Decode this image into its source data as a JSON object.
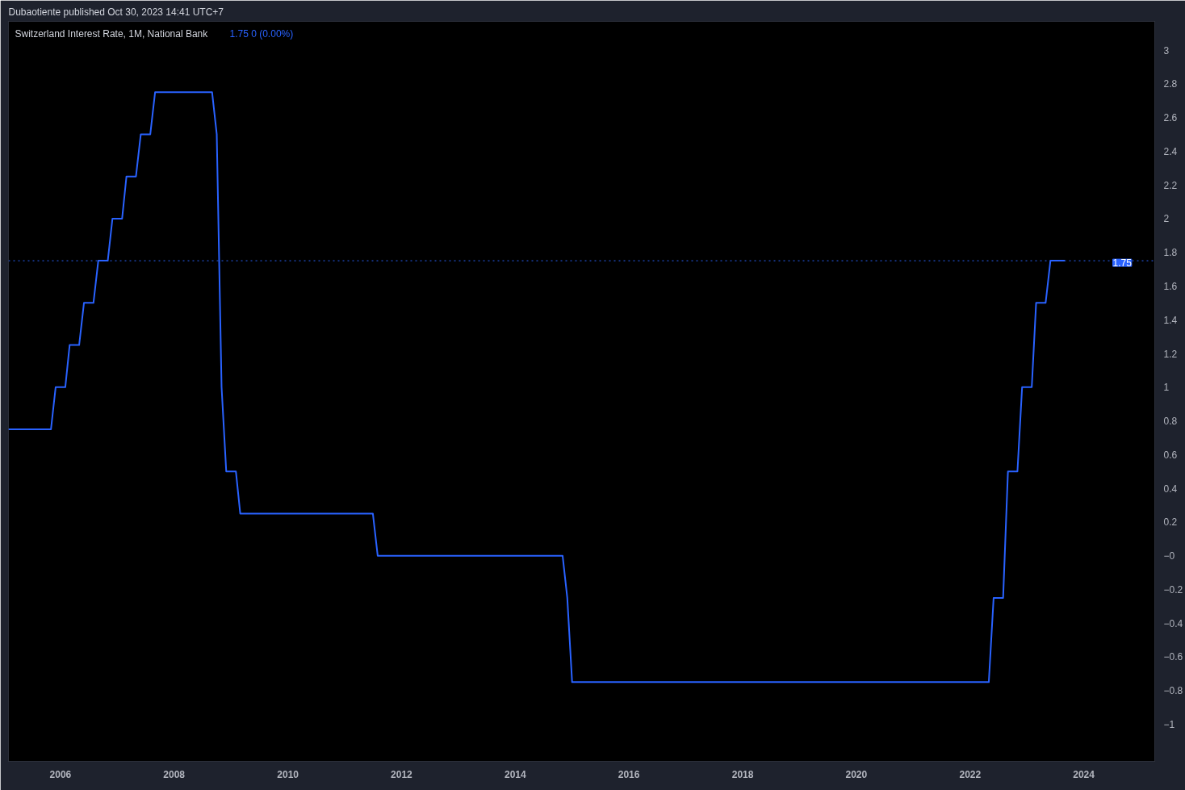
{
  "chart_data": {
    "type": "line",
    "title": "Switzerland Interest Rate, 1M, National Bank",
    "subtitle": "1.75  0 (0.00%)",
    "annotations": [
      "Dubaotiente published Oct 30, 2023 14:41 UTC+7"
    ],
    "x": [
      "2005-02",
      "2005-11",
      "2005-12",
      "2006-02",
      "2006-03",
      "2006-05",
      "2006-06",
      "2006-08",
      "2006-09",
      "2006-11",
      "2006-12",
      "2007-02",
      "2007-03",
      "2007-05",
      "2007-06",
      "2007-08",
      "2007-09",
      "2008-09",
      "2008-10",
      "2008-11",
      "2008-12",
      "2009-02",
      "2009-03",
      "2011-07",
      "2011-08",
      "2014-11",
      "2014-12",
      "2015-01",
      "2022-05",
      "2022-06",
      "2022-08",
      "2022-09",
      "2022-11",
      "2022-12",
      "2023-02",
      "2023-03",
      "2023-05",
      "2023-06",
      "2023-09"
    ],
    "series": [
      {
        "color": "#2962ff",
        "values": [
          0.75,
          0.75,
          1.0,
          1.0,
          1.25,
          1.25,
          1.5,
          1.5,
          1.75,
          1.75,
          2.0,
          2.0,
          2.25,
          2.25,
          2.5,
          2.5,
          2.75,
          2.75,
          2.5,
          1.0,
          0.5,
          0.5,
          0.25,
          0.25,
          0,
          0,
          -0.25,
          -0.75,
          -0.75,
          -0.25,
          -0.25,
          0.5,
          0.5,
          1.0,
          1.0,
          1.5,
          1.5,
          1.75,
          1.75
        ]
      }
    ],
    "xlim": [
      "2005-02",
      "2025-04"
    ],
    "xticks": [
      "2006",
      "2008",
      "2010",
      "2012",
      "2014",
      "2016",
      "2018",
      "2020",
      "2022",
      "2024"
    ],
    "ylim": [
      -1.22,
      3.17
    ],
    "yticks": [
      {
        "value": -1,
        "label": "−1"
      },
      {
        "value": -0.8,
        "label": "−0.8"
      },
      {
        "value": -0.6,
        "label": "−0.6"
      },
      {
        "value": -0.4,
        "label": "−0.4"
      },
      {
        "value": -0.2,
        "label": "−0.2"
      },
      {
        "value": 0,
        "label": "−0"
      },
      0.2,
      0.4,
      0.6,
      0.8,
      1,
      1.2,
      1.4,
      1.6,
      1.8,
      2,
      2.2,
      2.4,
      2.6,
      2.8,
      3
    ],
    "ref_lines": [
      {
        "axis": "y",
        "value": 1.75,
        "label": "1.75",
        "color": "#2962ff",
        "line_style": "dotted"
      }
    ],
    "grid": false,
    "marker": "none",
    "line_style": "solid"
  }
}
